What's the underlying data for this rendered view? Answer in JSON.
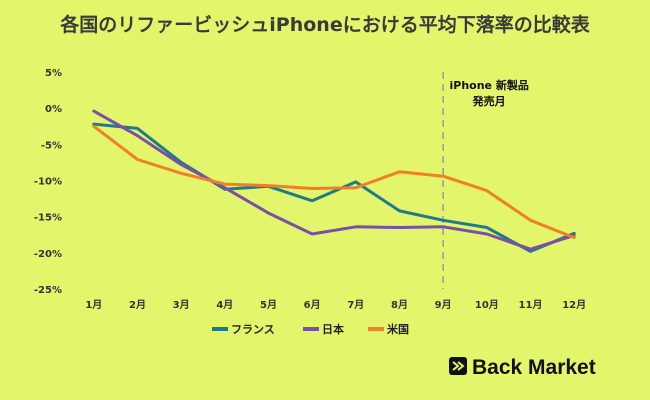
{
  "chart_data": {
    "type": "line",
    "title": "各国のリファービッシュiPhoneにおける平均下落率の比較表",
    "xlabel": "",
    "ylabel": "",
    "categories": [
      "1月",
      "2月",
      "3月",
      "4月",
      "5月",
      "6月",
      "7月",
      "8月",
      "9月",
      "10月",
      "11月",
      "12月"
    ],
    "y_ticks": [
      "5%",
      "0%",
      "-5%",
      "-10%",
      "-15%",
      "-20%",
      "-25%"
    ],
    "y_tick_values": [
      5,
      0,
      -5,
      -10,
      -15,
      -20,
      -25
    ],
    "ylim": [
      -25,
      5
    ],
    "grid": false,
    "legend_position": "bottom",
    "series": [
      {
        "name": "フランス",
        "color": "#1f7a8c",
        "values": [
          -2.2,
          -2.8,
          -7.5,
          -11.2,
          -10.8,
          -12.8,
          -10.2,
          -14.2,
          -15.5,
          -16.5,
          -19.8,
          -17.3
        ]
      },
      {
        "name": "日本",
        "color": "#7b4fa8",
        "values": [
          -0.4,
          -3.8,
          -7.8,
          -11.0,
          -14.5,
          -17.4,
          -16.4,
          -16.5,
          -16.4,
          -17.4,
          -19.5,
          -17.6
        ]
      },
      {
        "name": "米国",
        "color": "#f07f2a",
        "values": [
          -2.5,
          -7.1,
          -9.0,
          -10.5,
          -10.7,
          -11.1,
          -11.0,
          -8.8,
          -9.4,
          -11.4,
          -15.5,
          -17.9
        ]
      }
    ],
    "annotation": {
      "category": "9月",
      "line1": "iPhone 新製品",
      "line2": "発売月"
    }
  },
  "brand": {
    "name": "Back Market"
  }
}
